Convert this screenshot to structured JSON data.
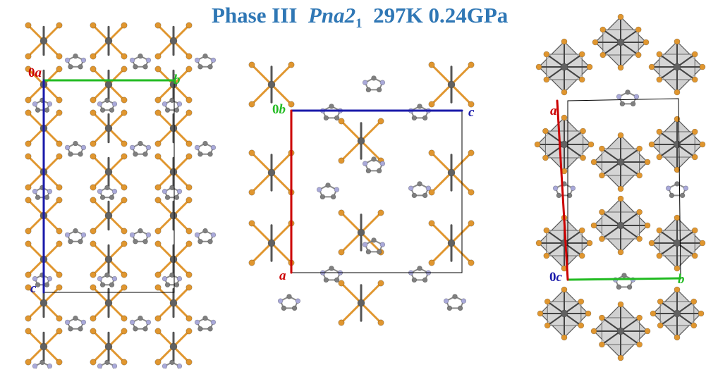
{
  "title": {
    "phase": "Phase III",
    "space_group_base": "Pna2",
    "space_group_sub": "1",
    "conditions": "297K 0.24GPa"
  },
  "colors": {
    "title": "#2f77b5",
    "axis_a": "#cc0000",
    "axis_b": "#22bb22",
    "axis_c": "#1a1aaa",
    "metal_atom": "#616161",
    "halide_atom": "#e0962f",
    "bond_orange": "#e0962f",
    "carbon_atom": "#7f7f7f",
    "nitrogen_atom": "#a9a9d9",
    "polyhedron_fill": "#c8c8c8"
  },
  "panels": [
    {
      "name": "view-along-a",
      "labels": {
        "origin": "0",
        "axis1": "a",
        "axis2": "b",
        "axis3": "c"
      }
    },
    {
      "name": "view-along-b",
      "labels": {
        "origin": "0",
        "axis1": "b",
        "axis2": "c",
        "axis3": "a"
      }
    },
    {
      "name": "view-along-c-polyhedra",
      "labels": {
        "origin": "0",
        "axis1": "c",
        "axis2": "a",
        "axis3": "b"
      }
    }
  ],
  "legend_icons": [
    "metal-atom-icon",
    "halide-atom-icon",
    "imidazolium-ring-icon",
    "octahedron-icon"
  ]
}
